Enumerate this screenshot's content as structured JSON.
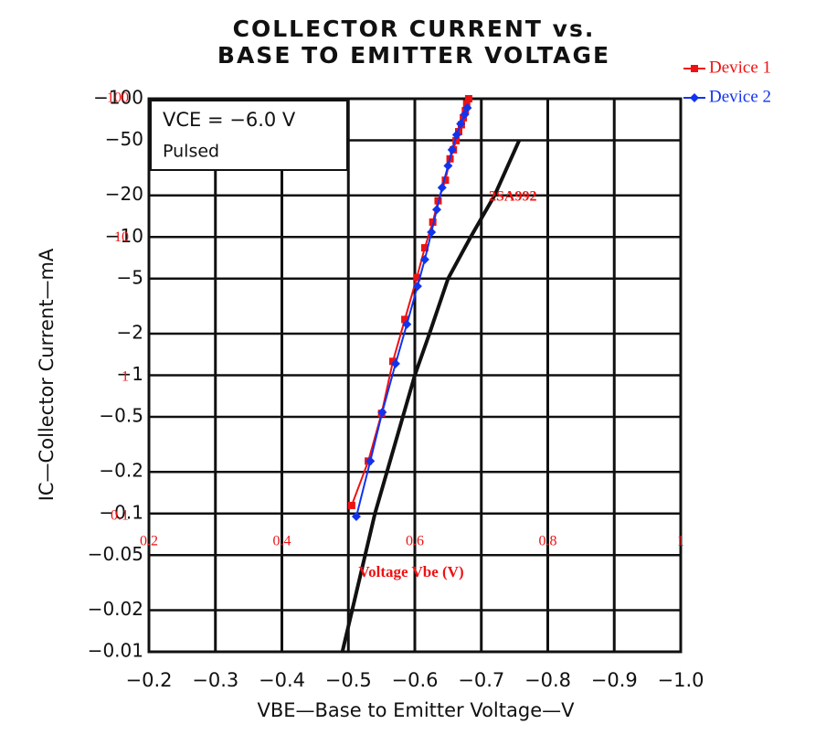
{
  "chart_data": [
    {
      "type": "line",
      "title": [
        "COLLECTOR CURRENT vs.",
        "BASE TO EMITTER VOLTAGE"
      ],
      "box_text": [
        "VCE = −6.0 V",
        "Pulsed"
      ],
      "x_label": "VBE—Base to Emitter Voltage—V",
      "y_label": "IC—Collector Current—mA",
      "log_y": true,
      "grid": true,
      "xlim": [
        -0.2,
        -1.0
      ],
      "xticks": [
        {
          "value": -0.2,
          "label": "−0.2"
        },
        {
          "value": -0.3,
          "label": "−0.3"
        },
        {
          "value": -0.4,
          "label": "−0.4"
        },
        {
          "value": -0.5,
          "label": "−0.5"
        },
        {
          "value": -0.6,
          "label": "−0.6"
        },
        {
          "value": -0.7,
          "label": "−0.7"
        },
        {
          "value": -0.8,
          "label": "−0.8"
        },
        {
          "value": -0.9,
          "label": "−0.9"
        },
        {
          "value": -1.0,
          "label": "−1.0"
        }
      ],
      "ylim": [
        -0.01,
        -100
      ],
      "yticks": [
        {
          "value": -0.01,
          "label": "−0.01"
        },
        {
          "value": -0.02,
          "label": "−0.02"
        },
        {
          "value": -0.05,
          "label": "−0.05"
        },
        {
          "value": -0.1,
          "label": "−0.1"
        },
        {
          "value": -0.2,
          "label": "−0.2"
        },
        {
          "value": -0.5,
          "label": "−0.5"
        },
        {
          "value": -1,
          "label": "−1"
        },
        {
          "value": -2,
          "label": "−2"
        },
        {
          "value": -5,
          "label": "−5"
        },
        {
          "value": -10,
          "label": "−10"
        },
        {
          "value": -20,
          "label": "−20"
        },
        {
          "value": -50,
          "label": "−50"
        },
        {
          "value": -100,
          "label": "−100"
        }
      ],
      "annotation": "2SA992",
      "series": [
        {
          "color": "#111111",
          "x": [
            -0.491,
            -0.54,
            -0.6,
            -0.622,
            -0.65,
            -0.684,
            -0.72,
            -0.757
          ],
          "values": [
            -0.01,
            -0.1,
            -1,
            -2,
            -5,
            -10,
            -20,
            -50
          ]
        }
      ]
    },
    {
      "type": "line",
      "x_label": "Voltage Vbe (V)",
      "log_y": true,
      "legend": "top-right",
      "xlim": [
        0.2,
        1
      ],
      "xticks": [
        0.2,
        0.4,
        0.6,
        0.8,
        1
      ],
      "ylim": [
        0.1,
        100
      ],
      "yticks": [
        0.1,
        1,
        10,
        100
      ],
      "series": [
        {
          "name": "Device 1",
          "color": "#ee1111",
          "marker": "square",
          "x": [
            0.505,
            0.53,
            0.55,
            0.567,
            0.585,
            0.603,
            0.615,
            0.627,
            0.635,
            0.646,
            0.653,
            0.658,
            0.662,
            0.666,
            0.67,
            0.673,
            0.676,
            0.678,
            0.681
          ],
          "values": [
            0.12,
            0.25,
            0.55,
            1.3,
            2.6,
            5.2,
            8.5,
            13,
            18.5,
            26,
            37,
            43,
            50,
            58,
            65,
            73,
            82,
            92,
            100
          ]
        },
        {
          "name": "Device 2",
          "color": "#1133ee",
          "marker": "diamond",
          "x": [
            0.512,
            0.533,
            0.551,
            0.571,
            0.588,
            0.604,
            0.615,
            0.625,
            0.633,
            0.641,
            0.65,
            0.656,
            0.663,
            0.669,
            0.675,
            0.679
          ],
          "values": [
            0.1,
            0.25,
            0.56,
            1.25,
            2.4,
            4.5,
            7,
            11,
            16,
            23,
            33,
            43,
            55,
            66,
            77,
            86
          ]
        }
      ]
    }
  ]
}
